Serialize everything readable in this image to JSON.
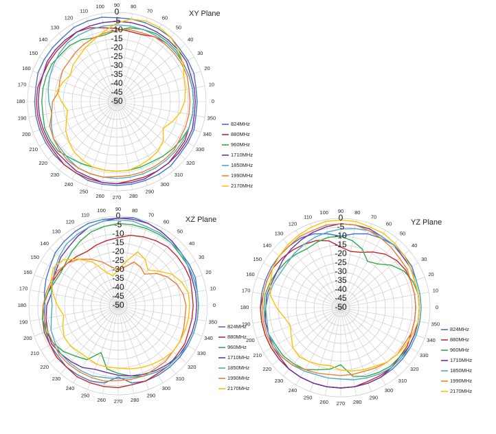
{
  "chart_data": [
    {
      "type": "polar",
      "title": "XY Plane",
      "radial_ticks": [
        "0",
        "-5",
        "-10",
        "-15",
        "-20",
        "-25",
        "-30",
        "-35",
        "-40",
        "-45",
        "-50"
      ],
      "rlim": [
        -50,
        0
      ],
      "angle_step_deg": 10,
      "angle_labels": [
        "0",
        "10",
        "20",
        "30",
        "40",
        "50",
        "60",
        "70",
        "80",
        "90",
        "100",
        "110",
        "120",
        "130",
        "140",
        "150",
        "160",
        "170",
        "180",
        "190",
        "200",
        "210",
        "220",
        "230",
        "240",
        "250",
        "260",
        "270",
        "280",
        "290",
        "300",
        "310",
        "320",
        "330",
        "340",
        "350"
      ],
      "legend": [
        "824MHz",
        "880MHz",
        "960MHz",
        "1710MHz",
        "1850MHz",
        "1990MHz",
        "2170MHz"
      ],
      "series": [
        {
          "name": "824MHz",
          "color": "#4472c4",
          "values": [
            -5,
            -5,
            -4,
            -4,
            -4,
            -3,
            -3,
            -3,
            -3,
            -3,
            -2,
            -2,
            -2,
            -3,
            -3,
            -3,
            -3,
            -4,
            -4,
            -4,
            -4,
            -4,
            -4,
            -4,
            -4,
            -3,
            -3,
            -3,
            -3,
            -3,
            -3,
            -3,
            -4,
            -4,
            -4,
            -5
          ]
        },
        {
          "name": "880MHz",
          "color": "#c0282d",
          "values": [
            -7,
            -7,
            -7,
            -7,
            -7,
            -7,
            -8,
            -10,
            -10,
            -9,
            -8,
            -6,
            -5,
            -6,
            -6,
            -6,
            -6,
            -5,
            -5,
            -5,
            -5,
            -5,
            -5,
            -4,
            -4,
            -4,
            -4,
            -4,
            -5,
            -5,
            -5,
            -5,
            -6,
            -6,
            -7,
            -7
          ]
        },
        {
          "name": "960MHz",
          "color": "#2eaa4a",
          "values": [
            -7,
            -7,
            -7,
            -7,
            -6,
            -6,
            -6,
            -7,
            -8,
            -10,
            -12,
            -12,
            -10,
            -9,
            -9,
            -8,
            -8,
            -8,
            -8,
            -8,
            -7,
            -7,
            -7,
            -9,
            -10,
            -11,
            -11,
            -11,
            -11,
            -11,
            -11,
            -10,
            -9,
            -8,
            -7,
            -7
          ]
        },
        {
          "name": "1710MHz",
          "color": "#7030a0",
          "values": [
            -6,
            -6,
            -6,
            -5,
            -5,
            -5,
            -5,
            -5,
            -5,
            -5,
            -5,
            -5,
            -5,
            -5,
            -5,
            -5,
            -6,
            -6,
            -6,
            -6,
            -6,
            -6,
            -6,
            -6,
            -5,
            -5,
            -4,
            -4,
            -4,
            -4,
            -5,
            -5,
            -5,
            -5,
            -5,
            -6
          ]
        },
        {
          "name": "1850MHz",
          "color": "#4bacc6",
          "values": [
            -7,
            -7,
            -7,
            -7,
            -7,
            -7,
            -7,
            -7,
            -7,
            -7,
            -7,
            -7,
            -7,
            -7,
            -8,
            -9,
            -10,
            -11,
            -12,
            -13,
            -11,
            -9,
            -9,
            -8,
            -7,
            -7,
            -7,
            -7,
            -7,
            -7,
            -7,
            -7,
            -7,
            -7,
            -7,
            -7
          ]
        },
        {
          "name": "1990MHz",
          "color": "#ed7d31",
          "values": [
            -9,
            -9,
            -8,
            -8,
            -8,
            -8,
            -8,
            -9,
            -9,
            -10,
            -11,
            -12,
            -13,
            -14,
            -15,
            -15,
            -16,
            -17,
            -14,
            -13,
            -10,
            -9,
            -8,
            -7,
            -7,
            -7,
            -7,
            -8,
            -8,
            -8,
            -8,
            -8,
            -8,
            -9,
            -9,
            -9
          ]
        },
        {
          "name": "2170MHz",
          "color": "#ffc000",
          "values": [
            -12,
            -11,
            -10,
            -7,
            -5,
            -3,
            -2,
            -2,
            -3,
            -6,
            -10,
            -13,
            -15,
            -17,
            -18,
            -20,
            -18,
            -16,
            -19,
            -22,
            -20,
            -17,
            -15,
            -13,
            -12,
            -11,
            -11,
            -11,
            -11,
            -12,
            -13,
            -14,
            -16,
            -20,
            -17,
            -14
          ]
        }
      ]
    },
    {
      "type": "polar",
      "title": "XZ Plane",
      "radial_ticks": [
        "0",
        "-5",
        "-10",
        "-15",
        "-20",
        "-25",
        "-30",
        "-35",
        "-40",
        "-45",
        "-50"
      ],
      "rlim": [
        -50,
        0
      ],
      "angle_step_deg": 10,
      "angle_labels": [
        "0",
        "10",
        "20",
        "30",
        "40",
        "50",
        "60",
        "70",
        "80",
        "90",
        "100",
        "110",
        "120",
        "130",
        "140",
        "150",
        "160",
        "170",
        "180",
        "190",
        "200",
        "210",
        "220",
        "230",
        "240",
        "250",
        "260",
        "270",
        "280",
        "290",
        "300",
        "310",
        "320",
        "330",
        "340",
        "350"
      ],
      "legend": [
        "824MHz",
        "880MHz",
        "960MHz",
        "1710MHz",
        "1850MHz",
        "1990MHz",
        "2170MHz"
      ],
      "series": [
        {
          "name": "824MHz",
          "color": "#4472c4",
          "values": [
            -5,
            -5,
            -4,
            -4,
            -4,
            -3,
            -2,
            -1,
            0,
            -1,
            -1,
            -1,
            -2,
            -3,
            -4,
            -6,
            -7,
            -8,
            -9,
            -8,
            -7,
            -6,
            -6,
            -5,
            -5,
            -5,
            -6,
            -10,
            -6,
            -5,
            -5,
            -5,
            -5,
            -5,
            -5,
            -5
          ]
        },
        {
          "name": "880MHz",
          "color": "#c0282d",
          "values": [
            -8,
            -8,
            -7,
            -7,
            -7,
            -7,
            -8,
            -9,
            -10,
            -12,
            -13,
            -14,
            -15,
            -14,
            -13,
            -12,
            -11,
            -10,
            -8,
            -7,
            -6,
            -6,
            -5,
            -5,
            -4,
            -4,
            -4,
            -4,
            -5,
            -5,
            -6,
            -6,
            -7,
            -7,
            -8,
            -8
          ]
        },
        {
          "name": "960MHz",
          "color": "#2eaa4a",
          "values": [
            -5,
            -5,
            -5,
            -5,
            -5,
            -4,
            -4,
            -4,
            -4,
            -4,
            -5,
            -6,
            -8,
            -10,
            -12,
            -13,
            -12,
            -10,
            -8,
            -7,
            -7,
            -8,
            -10,
            -13,
            -15,
            -22,
            -14,
            -12,
            -10,
            -8,
            -7,
            -6,
            -6,
            -5,
            -5,
            -5
          ]
        },
        {
          "name": "1710MHz",
          "color": "#7030a0",
          "values": [
            -6,
            -6,
            -6,
            -5,
            -4,
            -3,
            -2,
            -1,
            -1,
            -1,
            -2,
            -3,
            -5,
            -7,
            -8,
            -10,
            -11,
            -12,
            -10,
            -9,
            -8,
            -7,
            -8,
            -9,
            -10,
            -12,
            -12,
            -11,
            -10,
            -9,
            -8,
            -7,
            -6,
            -6,
            -6,
            -6
          ]
        },
        {
          "name": "1850MHz",
          "color": "#4bacc6",
          "values": [
            -5,
            -5,
            -5,
            -5,
            -4,
            -4,
            -3,
            -3,
            -2,
            -2,
            -2,
            -3,
            -4,
            -5,
            -7,
            -9,
            -11,
            -12,
            -13,
            -12,
            -10,
            -9,
            -8,
            -8,
            -8,
            -8,
            -9,
            -9,
            -9,
            -8,
            -7,
            -6,
            -6,
            -5,
            -5,
            -5
          ]
        },
        {
          "name": "1990MHz",
          "color": "#ed7d31",
          "values": [
            -12,
            -13,
            -15,
            -18,
            -22,
            -27,
            -25,
            -24,
            -28,
            -30,
            -28,
            -24,
            -20,
            -16,
            -13,
            -11,
            -10,
            -9,
            -8,
            -8,
            -8,
            -8,
            -7,
            -7,
            -7,
            -7,
            -7,
            -8,
            -8,
            -8,
            -9,
            -9,
            -10,
            -10,
            -11,
            -12
          ]
        },
        {
          "name": "2170MHz",
          "color": "#ffc000",
          "values": [
            -10,
            -10,
            -12,
            -15,
            -20,
            -24,
            -20,
            -18,
            -25,
            -30,
            -33,
            -30,
            -22,
            -16,
            -10,
            -8,
            -10,
            -13,
            -16,
            -19,
            -17,
            -15,
            -15,
            -16,
            -16,
            -15,
            -15,
            -15,
            -14,
            -13,
            -12,
            -11,
            -10,
            -10,
            -10,
            -10
          ]
        }
      ]
    },
    {
      "type": "polar",
      "title": "YZ Plane",
      "radial_ticks": [
        "0",
        "-5",
        "-10",
        "-15",
        "-20",
        "-25",
        "-30",
        "-35",
        "-40",
        "-45",
        "-50"
      ],
      "rlim": [
        -50,
        0
      ],
      "angle_step_deg": 10,
      "angle_labels": [
        "0",
        "10",
        "20",
        "30",
        "40",
        "50",
        "60",
        "70",
        "80",
        "90",
        "100",
        "110",
        "120",
        "130",
        "140",
        "150",
        "160",
        "170",
        "180",
        "190",
        "200",
        "210",
        "220",
        "230",
        "240",
        "250",
        "260",
        "270",
        "280",
        "290",
        "300",
        "310",
        "320",
        "330",
        "340",
        "350"
      ],
      "legend": [
        "824MHz",
        "880MHz",
        "960MHz",
        "1710MHz",
        "1850MHz",
        "1990MHz",
        "2170MHz"
      ],
      "series": [
        {
          "name": "824MHz",
          "color": "#4472c4",
          "values": [
            -5,
            -5,
            -5,
            -4,
            -4,
            -4,
            -5,
            -6,
            -8,
            -10,
            -8,
            -6,
            -5,
            -5,
            -5,
            -5,
            -5,
            -5,
            -5,
            -5,
            -5,
            -5,
            -5,
            -5,
            -5,
            -5,
            -5,
            -5,
            -5,
            -5,
            -5,
            -5,
            -5,
            -5,
            -5,
            -5
          ]
        },
        {
          "name": "880MHz",
          "color": "#c0282d",
          "values": [
            -8,
            -8,
            -8,
            -8,
            -9,
            -11,
            -14,
            -17,
            -18,
            -16,
            -12,
            -10,
            -9,
            -8,
            -7,
            -6,
            -6,
            -6,
            -5,
            -5,
            -5,
            -5,
            -5,
            -5,
            -5,
            -5,
            -5,
            -5,
            -5,
            -6,
            -6,
            -6,
            -7,
            -7,
            -8,
            -8
          ]
        },
        {
          "name": "960MHz",
          "color": "#2eaa4a",
          "values": [
            -6,
            -6,
            -7,
            -9,
            -13,
            -18,
            -20,
            -15,
            -12,
            -10,
            -10,
            -11,
            -12,
            -11,
            -10,
            -9,
            -8,
            -7,
            -7,
            -7,
            -7,
            -8,
            -8,
            -9,
            -10,
            -13,
            -15,
            -18,
            -11,
            -9,
            -8,
            -7,
            -7,
            -6,
            -6,
            -6
          ]
        },
        {
          "name": "1710MHz",
          "color": "#7030a0",
          "values": [
            -6,
            -6,
            -6,
            -5,
            -5,
            -4,
            -4,
            -3,
            -3,
            -3,
            -4,
            -5,
            -6,
            -7,
            -8,
            -9,
            -9,
            -8,
            -8,
            -7,
            -7,
            -6,
            -6,
            -5,
            -5,
            -5,
            -5,
            -5,
            -5,
            -5,
            -5,
            -6,
            -6,
            -6,
            -6,
            -6
          ]
        },
        {
          "name": "1850MHz",
          "color": "#4bacc6",
          "values": [
            -5,
            -5,
            -5,
            -5,
            -4,
            -4,
            -4,
            -4,
            -5,
            -6,
            -7,
            -8,
            -9,
            -10,
            -11,
            -11,
            -10,
            -9,
            -8,
            -8,
            -7,
            -7,
            -7,
            -8,
            -9,
            -10,
            -10,
            -10,
            -9,
            -8,
            -7,
            -6,
            -6,
            -5,
            -5,
            -5
          ]
        },
        {
          "name": "1990MHz",
          "color": "#ed7d31",
          "values": [
            -8,
            -8,
            -8,
            -7,
            -7,
            -6,
            -5,
            -4,
            -3,
            -3,
            -3,
            -4,
            -4,
            -5,
            -5,
            -6,
            -6,
            -6,
            -6,
            -6,
            -6,
            -6,
            -7,
            -8,
            -10,
            -11,
            -12,
            -12,
            -12,
            -12,
            -11,
            -10,
            -9,
            -9,
            -8,
            -8
          ]
        },
        {
          "name": "2170MHz",
          "color": "#ffc000",
          "values": [
            -6,
            -6,
            -6,
            -5,
            -4,
            -3,
            -2,
            -2,
            -1,
            -1,
            -1,
            -2,
            -3,
            -4,
            -5,
            -6,
            -8,
            -10,
            -14,
            -18,
            -20,
            -18,
            -15,
            -14,
            -15,
            -16,
            -17,
            -15,
            -14,
            -13,
            -12,
            -10,
            -9,
            -8,
            -7,
            -6
          ]
        }
      ]
    }
  ]
}
